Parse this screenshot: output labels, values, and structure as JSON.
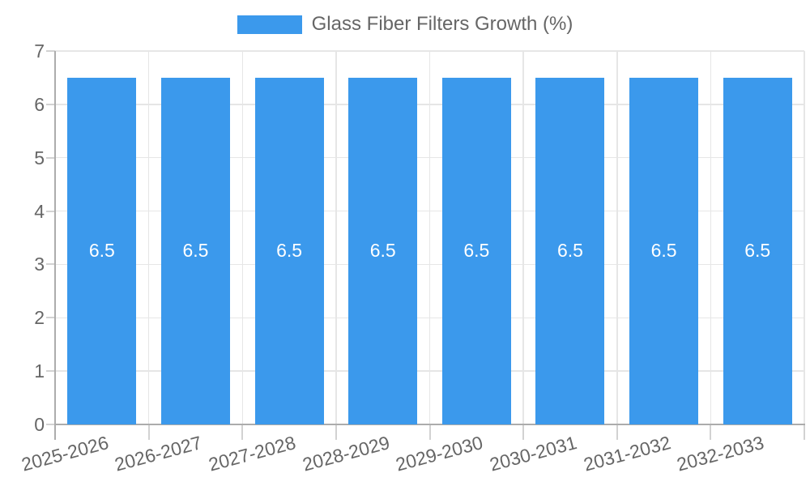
{
  "legend": {
    "label": "Glass Fiber Filters Growth (%)"
  },
  "colors": {
    "bar": "#3B99EC",
    "grid": "#E6E6E6",
    "axis": "#ACACAC",
    "tick": "#D2D2D2",
    "text": "#666666",
    "value_text": "#FFFFFF",
    "background": "#FFFFFF"
  },
  "chart_data": {
    "type": "bar",
    "title": "Glass Fiber Filters Growth (%)",
    "categories": [
      "2025-2026",
      "2026-2027",
      "2027-2028",
      "2028-2029",
      "2029-2030",
      "2030-2031",
      "2031-2032",
      "2032-2033"
    ],
    "values": [
      6.5,
      6.5,
      6.5,
      6.5,
      6.5,
      6.5,
      6.5,
      6.5
    ],
    "value_labels": [
      "6.5",
      "6.5",
      "6.5",
      "6.5",
      "6.5",
      "6.5",
      "6.5",
      "6.5"
    ],
    "xlabel": "",
    "ylabel": "",
    "ylim": [
      0,
      7
    ],
    "yticks": [
      0,
      1,
      2,
      3,
      4,
      5,
      6,
      7
    ],
    "grid": true,
    "legend_position": "top",
    "value_labels_visible": true,
    "x_tick_rotation_deg": -15
  }
}
